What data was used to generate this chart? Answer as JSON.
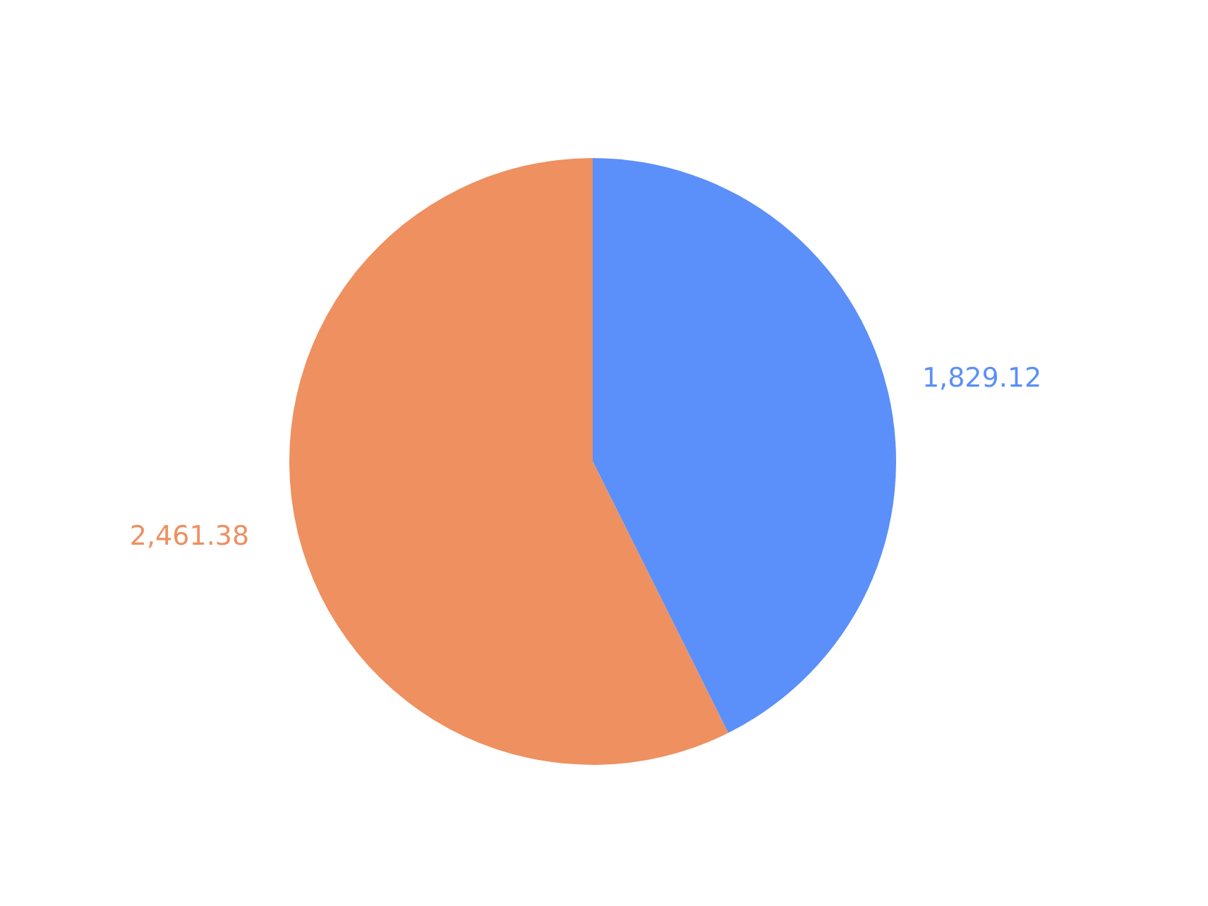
{
  "chart_data": {
    "type": "pie",
    "categories": [
      null,
      null
    ],
    "values": [
      1829.12,
      2461.38
    ],
    "value_labels": [
      "1,829.12",
      "2,461.38"
    ],
    "colors": [
      "#5b8ff9",
      "#ee9060"
    ],
    "legend": false
  }
}
